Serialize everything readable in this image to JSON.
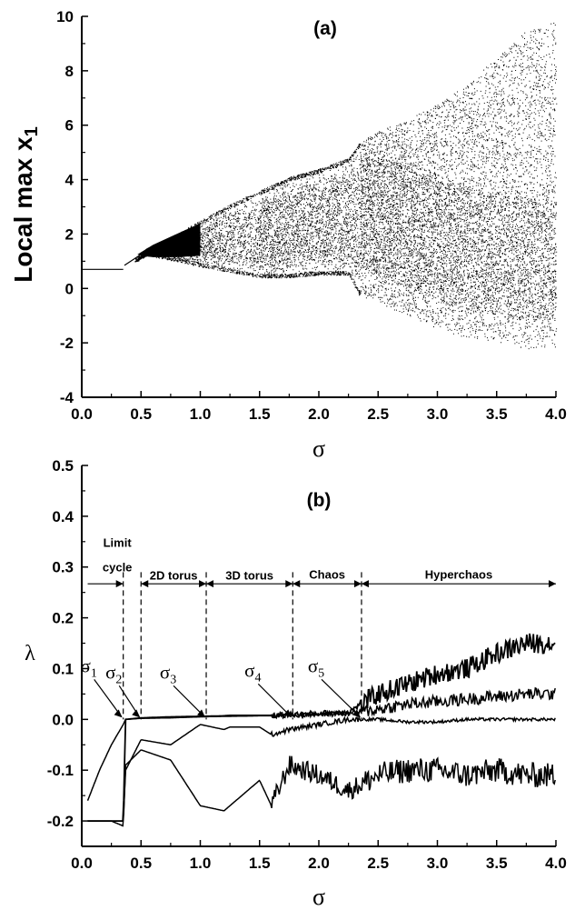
{
  "chart_data": [
    {
      "type": "scatter",
      "panel_label": "(a)",
      "title": "",
      "xlabel": "σ",
      "ylabel": "Local max x",
      "ylabel_sub": "1",
      "xlim": [
        0.0,
        4.0
      ],
      "ylim": [
        -4,
        10
      ],
      "xticks": [
        "0.0",
        "0.5",
        "1.0",
        "1.5",
        "2.0",
        "2.5",
        "3.0",
        "3.5",
        "4.0"
      ],
      "yticks": [
        "-4",
        "-2",
        "0",
        "2",
        "4",
        "6",
        "8",
        "10"
      ],
      "grid": false,
      "color": "#000000",
      "envelope_sigma": [
        0.0,
        0.35,
        0.45,
        0.55,
        0.8,
        1.0,
        1.25,
        1.5,
        1.75,
        2.0,
        2.25,
        2.35,
        2.5,
        2.75,
        3.0,
        3.25,
        3.5,
        3.75,
        4.0
      ],
      "envelope_min": [
        0.7,
        0.7,
        1.0,
        1.2,
        1.0,
        0.8,
        0.6,
        0.4,
        0.4,
        0.5,
        0.5,
        -0.3,
        -0.5,
        -1.0,
        -1.5,
        -1.8,
        -2.0,
        -2.2,
        -2.2
      ],
      "envelope_max": [
        0.7,
        0.7,
        1.0,
        1.5,
        2.0,
        2.5,
        3.1,
        3.6,
        4.1,
        4.4,
        4.8,
        5.4,
        5.8,
        6.2,
        6.8,
        7.5,
        8.5,
        9.5,
        9.8
      ]
    },
    {
      "type": "line",
      "panel_label": "(b)",
      "title": "",
      "xlabel": "σ",
      "ylabel": "λ",
      "xlim": [
        0.0,
        4.0
      ],
      "ylim": [
        -0.25,
        0.5
      ],
      "xticks": [
        "0.0",
        "0.5",
        "1.0",
        "1.5",
        "2.0",
        "2.5",
        "3.0",
        "3.5",
        "4.0"
      ],
      "yticks": [
        "-0.2",
        "-0.1",
        "0.0",
        "0.1",
        "0.2",
        "0.3",
        "0.4",
        "0.5"
      ],
      "grid": false,
      "color": "#000000",
      "x": [
        0.05,
        0.15,
        0.25,
        0.35,
        0.37,
        0.5,
        0.75,
        1.0,
        1.2,
        1.25,
        1.5,
        1.6,
        1.75,
        2.0,
        2.25,
        2.5,
        2.75,
        3.0,
        3.25,
        3.5,
        3.75,
        4.0
      ],
      "series": [
        {
          "values": [
            -0.2,
            -0.2,
            -0.2,
            -0.2,
            0.0,
            0.003,
            0.005,
            0.006,
            0.007,
            0.008,
            0.008,
            0.008,
            0.01,
            0.012,
            0.015,
            0.05,
            0.07,
            0.09,
            0.1,
            0.13,
            0.15,
            0.15
          ]
        },
        {
          "values": [
            -0.16,
            -0.1,
            -0.05,
            -0.01,
            0.0,
            0.002,
            0.003,
            0.005,
            0.006,
            0.006,
            0.007,
            0.007,
            0.008,
            0.01,
            0.012,
            0.02,
            0.03,
            0.035,
            0.04,
            0.045,
            0.05,
            0.05
          ]
        },
        {
          "values": [
            -0.2,
            -0.2,
            -0.2,
            -0.2,
            -0.1,
            -0.04,
            -0.05,
            -0.01,
            -0.02,
            -0.015,
            -0.015,
            -0.03,
            -0.02,
            -0.01,
            0.0,
            0.0,
            -0.005,
            -0.005,
            0.0,
            0.0,
            0.0,
            0.0
          ]
        },
        {
          "values": [
            -0.2,
            -0.2,
            -0.2,
            -0.21,
            -0.09,
            -0.06,
            -0.08,
            -0.17,
            -0.18,
            -0.17,
            -0.12,
            -0.17,
            -0.09,
            -0.11,
            -0.14,
            -0.11,
            -0.1,
            -0.1,
            -0.11,
            -0.1,
            -0.11,
            -0.11
          ]
        }
      ],
      "transitions": [
        {
          "label": "σ",
          "sub": "1",
          "x": 0.35
        },
        {
          "label": "σ",
          "sub": "2",
          "x": 0.5
        },
        {
          "label": "σ",
          "sub": "3",
          "x": 1.05
        },
        {
          "label": "σ",
          "sub": "4",
          "x": 1.78
        },
        {
          "label": "σ",
          "sub": "5",
          "x": 2.36
        }
      ],
      "regions": [
        {
          "label_line1": "Limit",
          "label_line2": "cycle"
        },
        {
          "label_line1": "2D torus"
        },
        {
          "label_line1": "3D torus"
        },
        {
          "label_line1": "Chaos"
        },
        {
          "label_line1": "Hyperchaos"
        }
      ]
    }
  ]
}
